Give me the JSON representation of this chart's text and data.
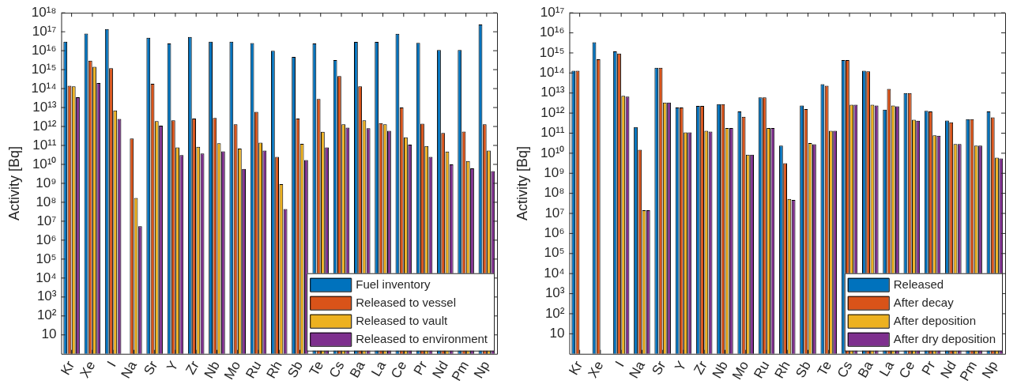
{
  "chart_data": [
    {
      "type": "bar",
      "ylabel": "Activity [Bq]",
      "log": true,
      "grid": false,
      "legend": "bottom right",
      "categories": [
        "Kr",
        "Xe",
        "I",
        "Na",
        "Sr",
        "Y",
        "Zr",
        "Nb",
        "Mo",
        "Ru",
        "Rh",
        "Sb",
        "Te",
        "Cs",
        "Ba",
        "La",
        "Ce",
        "Pr",
        "Nd",
        "Pm",
        "Np"
      ],
      "ylim": [
        1,
        1e+18
      ],
      "yticks": [
        {
          "value": 10,
          "label": "10"
        },
        {
          "value": 100.0,
          "label": "10²"
        },
        {
          "value": 1000.0,
          "label": "10³"
        },
        {
          "value": 10000.0,
          "label": "10⁴"
        },
        {
          "value": 100000.0,
          "label": "10⁵"
        },
        {
          "value": 1000000.0,
          "label": "10⁶"
        },
        {
          "value": 10000000.0,
          "label": "10⁷"
        },
        {
          "value": 100000000.0,
          "label": "10⁸"
        },
        {
          "value": 1000000000.0,
          "label": "10⁹"
        },
        {
          "value": 10000000000.0,
          "label": "10¹⁰"
        },
        {
          "value": 100000000000.0,
          "label": "10¹¹"
        },
        {
          "value": 1000000000000.0,
          "label": "10¹²"
        },
        {
          "value": 10000000000000.0,
          "label": "10¹³"
        },
        {
          "value": 100000000000000.0,
          "label": "10¹⁴"
        },
        {
          "value": 1000000000000000.0,
          "label": "10¹⁵"
        },
        {
          "value": 1e+16,
          "label": "10¹⁶"
        },
        {
          "value": 1e+17,
          "label": "10¹⁷"
        },
        {
          "value": 1e+18,
          "label": "10¹⁸"
        }
      ],
      "series": [
        {
          "name": "Fuel inventory",
          "color": "#0072bd",
          "values": [
            3e+16,
            8e+16,
            1.4e+17,
            null,
            4.8e+16,
            2.4e+16,
            5.3e+16,
            3e+16,
            3e+16,
            2.5e+16,
            1e+16,
            4700000000000000.0,
            2.4e+16,
            3200000000000000.0,
            2.9e+16,
            2.9e+16,
            7.8e+16,
            2.6e+16,
            1.1e+16,
            1.1e+16,
            2.4e+17
          ]
        },
        {
          "name": "Released to vessel",
          "color": "#d95319",
          "values": [
            140000000000000.0,
            3000000000000000.0,
            1200000000000000.0,
            230000000000.0,
            180000000000000.0,
            2100000000000.0,
            2600000000000.0,
            2800000000000.0,
            1300000000000.0,
            6000000000000.0,
            25000000000.0,
            2600000000000.0,
            28000000000000.0,
            460000000000000.0,
            130000000000000.0,
            1500000000000.0,
            10000000000000.0,
            1400000000000.0,
            450000000000.0,
            540000000000.0,
            1300000000000.0
          ]
        },
        {
          "name": "Released to vault",
          "color": "#edb120",
          "values": [
            130000000000000.0,
            1400000000000000.0,
            7000000000000.0,
            170000000.0,
            1900000000000.0,
            78000000000.0,
            85000000000.0,
            130000000000.0,
            68000000000.0,
            140000000000.0,
            900000000.0,
            120000000000.0,
            530000000000.0,
            1300000000000.0,
            2100000000000.0,
            1300000000000.0,
            270000000000.0,
            93000000000.0,
            48000000000.0,
            15000000000.0,
            53000000000.0
          ]
        },
        {
          "name": "Released to environment",
          "color": "#7e2f8e",
          "values": [
            35000000000000.0,
            200000000000000.0,
            2500000000000.0,
            5500000.0,
            1100000000000.0,
            31000000000.0,
            37000000000.0,
            49000000000.0,
            5800000000.0,
            54000000000.0,
            44000000.0,
            17000000000.0,
            78000000000.0,
            870000000000.0,
            810000000000.0,
            590000000000.0,
            110000000000.0,
            25000000000.0,
            10000000000.0,
            6200000000.0,
            4400000000.0
          ]
        }
      ]
    },
    {
      "type": "bar",
      "ylabel": "Activity [Bq]",
      "log": true,
      "grid": false,
      "legend": "bottom right",
      "categories": [
        "Kr",
        "Xe",
        "I",
        "Na",
        "Sr",
        "Y",
        "Zr",
        "Nb",
        "Mo",
        "Ru",
        "Rh",
        "Sb",
        "Te",
        "Cs",
        "Ba",
        "La",
        "Ce",
        "Pr",
        "Nd",
        "Pm",
        "Np"
      ],
      "ylim": [
        1,
        1e+17
      ],
      "yticks": [
        {
          "value": 10,
          "label": "10"
        },
        {
          "value": 100.0,
          "label": "10²"
        },
        {
          "value": 1000.0,
          "label": "10³"
        },
        {
          "value": 10000.0,
          "label": "10⁴"
        },
        {
          "value": 100000.0,
          "label": "10⁵"
        },
        {
          "value": 1000000.0,
          "label": "10⁶"
        },
        {
          "value": 10000000.0,
          "label": "10⁷"
        },
        {
          "value": 100000000.0,
          "label": "10⁸"
        },
        {
          "value": 1000000000.0,
          "label": "10⁹"
        },
        {
          "value": 10000000000.0,
          "label": "10¹⁰"
        },
        {
          "value": 100000000000.0,
          "label": "10¹¹"
        },
        {
          "value": 1000000000000.0,
          "label": "10¹²"
        },
        {
          "value": 10000000000000.0,
          "label": "10¹³"
        },
        {
          "value": 100000000000000.0,
          "label": "10¹⁴"
        },
        {
          "value": 1000000000000000.0,
          "label": "10¹⁵"
        },
        {
          "value": 1e+16,
          "label": "10¹⁶"
        },
        {
          "value": 1e+17,
          "label": "10¹⁷"
        }
      ],
      "series": [
        {
          "name": "Released",
          "color": "#0072bd",
          "values": [
            130000000000000.0,
            3400000000000000.0,
            1200000000000000.0,
            200000000000.0,
            180000000000000.0,
            1900000000000.0,
            2300000000000.0,
            2800000000000.0,
            1200000000000.0,
            6000000000000.0,
            24000000000.0,
            2400000000000.0,
            28000000000000.0,
            440000000000000.0,
            130000000000000.0,
            1500000000000.0,
            10000000000000.0,
            1300000000000.0,
            430000000000.0,
            500000000000.0,
            1200000000000.0
          ]
        },
        {
          "name": "After decay",
          "color": "#d95319",
          "values": [
            130000000000000.0,
            480000000000000.0,
            940000000000000.0,
            15000000000.0,
            180000000000000.0,
            1900000000000.0,
            2300000000000.0,
            2800000000000.0,
            660000000000.0,
            6000000000000.0,
            3200000000.0,
            1600000000000.0,
            23000000000000.0,
            440000000000000.0,
            120000000000000.0,
            16000000000000.0,
            10000000000000.0,
            1200000000000.0,
            350000000000.0,
            500000000000.0,
            620000000000.0
          ]
        },
        {
          "name": "After deposition",
          "color": "#edb120",
          "values": [
            null,
            null,
            7200000000000.0,
            14500000.0,
            3400000000000.0,
            110000000000.0,
            130000000000.0,
            180000000000.0,
            8500000000.0,
            180000000000.0,
            52000000.0,
            32000000000.0,
            130000000000.0,
            2600000000000.0,
            2600000000000.0,
            2400000000000.0,
            470000000000.0,
            78000000000.0,
            29000000000.0,
            24000000000.0,
            6000000000.0
          ]
        },
        {
          "name": "After dry deposition",
          "color": "#7e2f8e",
          "values": [
            null,
            null,
            6600000000000.0,
            14500000.0,
            3400000000000.0,
            110000000000.0,
            120000000000.0,
            180000000000.0,
            8500000000.0,
            180000000000.0,
            47000000.0,
            28000000000.0,
            130000000000.0,
            2600000000000.0,
            2400000000000.0,
            2200000000000.0,
            420000000000.0,
            74000000000.0,
            29000000000.0,
            24000000000.0,
            5500000000.0
          ]
        }
      ]
    }
  ]
}
